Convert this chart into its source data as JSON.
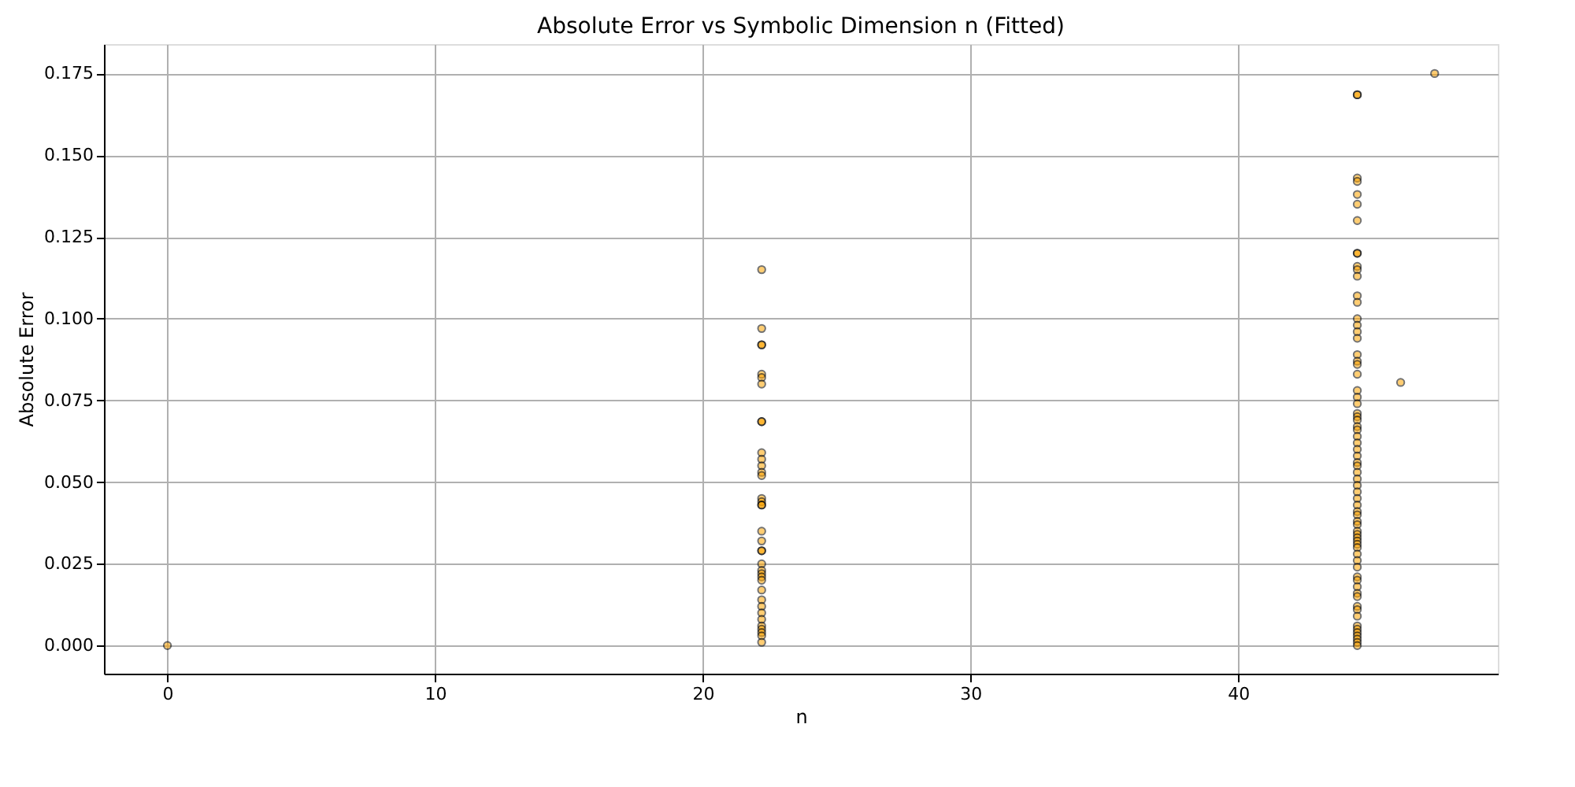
{
  "chart_data": {
    "type": "scatter",
    "title": "Absolute Error vs Symbolic Dimension n (Fitted)",
    "xlabel": "n",
    "ylabel": "Absolute Error",
    "series": [
      {
        "color": "#ffa500",
        "x": [
          0,
          22.2,
          22.2,
          22.2,
          22.2,
          22.2,
          22.2,
          22.2,
          22.2,
          22.2,
          22.2,
          22.2,
          22.2,
          22.2,
          22.2,
          22.2,
          22.2,
          22.2,
          22.2,
          22.2,
          22.2,
          22.2,
          22.2,
          22.2,
          22.2,
          22.2,
          22.2,
          22.2,
          22.2,
          22.2,
          22.2,
          22.2,
          22.2,
          22.2,
          22.2,
          22.2,
          22.2,
          22.2,
          44.45,
          44.45,
          44.45,
          44.45,
          44.45,
          44.45,
          44.45,
          44.45,
          44.45,
          44.45,
          44.45,
          44.45,
          44.45,
          44.45,
          44.45,
          44.45,
          44.45,
          44.45,
          44.45,
          44.45,
          44.45,
          44.45,
          44.45,
          44.45,
          44.45,
          44.45,
          44.45,
          44.45,
          44.45,
          44.45,
          44.45,
          44.45,
          44.45,
          44.45,
          44.45,
          44.45,
          44.45,
          44.45,
          44.45,
          44.45,
          44.45,
          44.45,
          44.45,
          44.45,
          44.45,
          44.45,
          44.45,
          44.45,
          44.45,
          44.45,
          44.45,
          44.45,
          44.45,
          44.45,
          44.45,
          44.45,
          44.45,
          44.45,
          44.45,
          44.45,
          44.45,
          44.45,
          44.45,
          44.45,
          44.45,
          44.45,
          44.45,
          44.45,
          44.45,
          44.45,
          46.07,
          47.34
        ],
        "values": [
          0,
          0.115,
          0.097,
          0.092,
          0.092,
          0.083,
          0.082,
          0.08,
          0.0685,
          0.0685,
          0.059,
          0.057,
          0.055,
          0.053,
          0.052,
          0.045,
          0.044,
          0.043,
          0.043,
          0.035,
          0.032,
          0.029,
          0.029,
          0.025,
          0.023,
          0.022,
          0.021,
          0.02,
          0.017,
          0.014,
          0.012,
          0.01,
          0.008,
          0.006,
          0.005,
          0.004,
          0.003,
          0.001,
          0.1685,
          0.1685,
          0.143,
          0.142,
          0.138,
          0.135,
          0.13,
          0.12,
          0.12,
          0.116,
          0.115,
          0.113,
          0.107,
          0.105,
          0.1,
          0.098,
          0.096,
          0.094,
          0.089,
          0.087,
          0.086,
          0.083,
          0.078,
          0.076,
          0.074,
          0.071,
          0.07,
          0.069,
          0.067,
          0.066,
          0.064,
          0.062,
          0.06,
          0.058,
          0.056,
          0.055,
          0.053,
          0.051,
          0.049,
          0.047,
          0.045,
          0.043,
          0.041,
          0.04,
          0.038,
          0.037,
          0.035,
          0.034,
          0.033,
          0.032,
          0.031,
          0.03,
          0.028,
          0.026,
          0.024,
          0.021,
          0.02,
          0.018,
          0.016,
          0.015,
          0.012,
          0.011,
          0.009,
          0.006,
          0.005,
          0.004,
          0.003,
          0.002,
          0.001,
          0,
          0.0805,
          0.175
        ]
      }
    ],
    "xlim": [
      -2.37,
      49.7
    ],
    "ylim": [
      -0.0086,
      0.184
    ],
    "xticks": [
      0,
      10,
      20,
      30,
      40
    ],
    "yticks": [
      {
        "value": 0,
        "label": "0.000"
      },
      {
        "value": 0.025,
        "label": "0.025"
      },
      {
        "value": 0.05,
        "label": "0.050"
      },
      {
        "value": 0.075,
        "label": "0.075"
      },
      {
        "value": 0.1,
        "label": "0.100"
      },
      {
        "value": 0.125,
        "label": "0.125"
      },
      {
        "value": 0.15,
        "label": "0.150"
      },
      {
        "value": 0.175,
        "label": "0.175"
      }
    ],
    "grid": true,
    "marker": "circle"
  }
}
